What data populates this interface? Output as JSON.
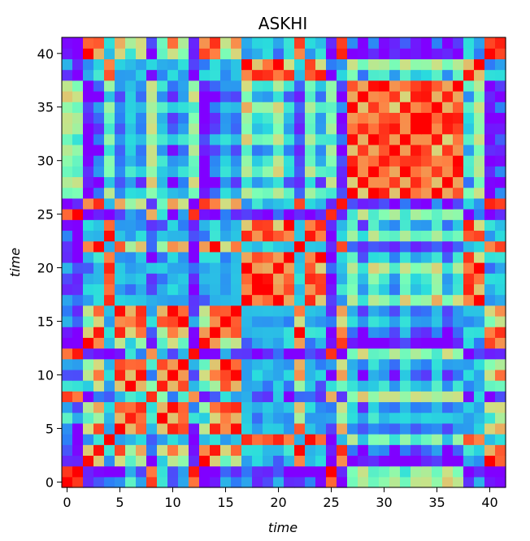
{
  "chart_data": {
    "type": "heatmap",
    "title": "ASKHI",
    "xlabel": "time",
    "ylabel": "time",
    "n": 42,
    "x_range": [
      0,
      41
    ],
    "y_range": [
      0,
      41
    ],
    "x_ticks": [
      0,
      5,
      10,
      15,
      20,
      25,
      30,
      35,
      40
    ],
    "y_ticks": [
      0,
      5,
      10,
      15,
      20,
      25,
      30,
      35,
      40
    ],
    "grid": false,
    "legend": "none",
    "colormap": "rainbow",
    "colormap_stops": [
      "#8000ff",
      "#2c7ef7",
      "#2adddd",
      "#80ffb4",
      "#d4dd80",
      "#ff7e41",
      "#ff0000"
    ],
    "block_boundaries": [
      0,
      2,
      4,
      5,
      8,
      9,
      12,
      13,
      15,
      17,
      22,
      23,
      25,
      26,
      27,
      38,
      40,
      42
    ],
    "block_pattern": [
      1,
      2,
      3,
      4,
      1,
      4,
      1,
      2,
      4,
      3,
      2,
      3,
      1,
      2,
      5,
      3,
      2
    ],
    "matrix_note": "symmetric recurrence-style similarity matrix; values in [0,1]"
  }
}
